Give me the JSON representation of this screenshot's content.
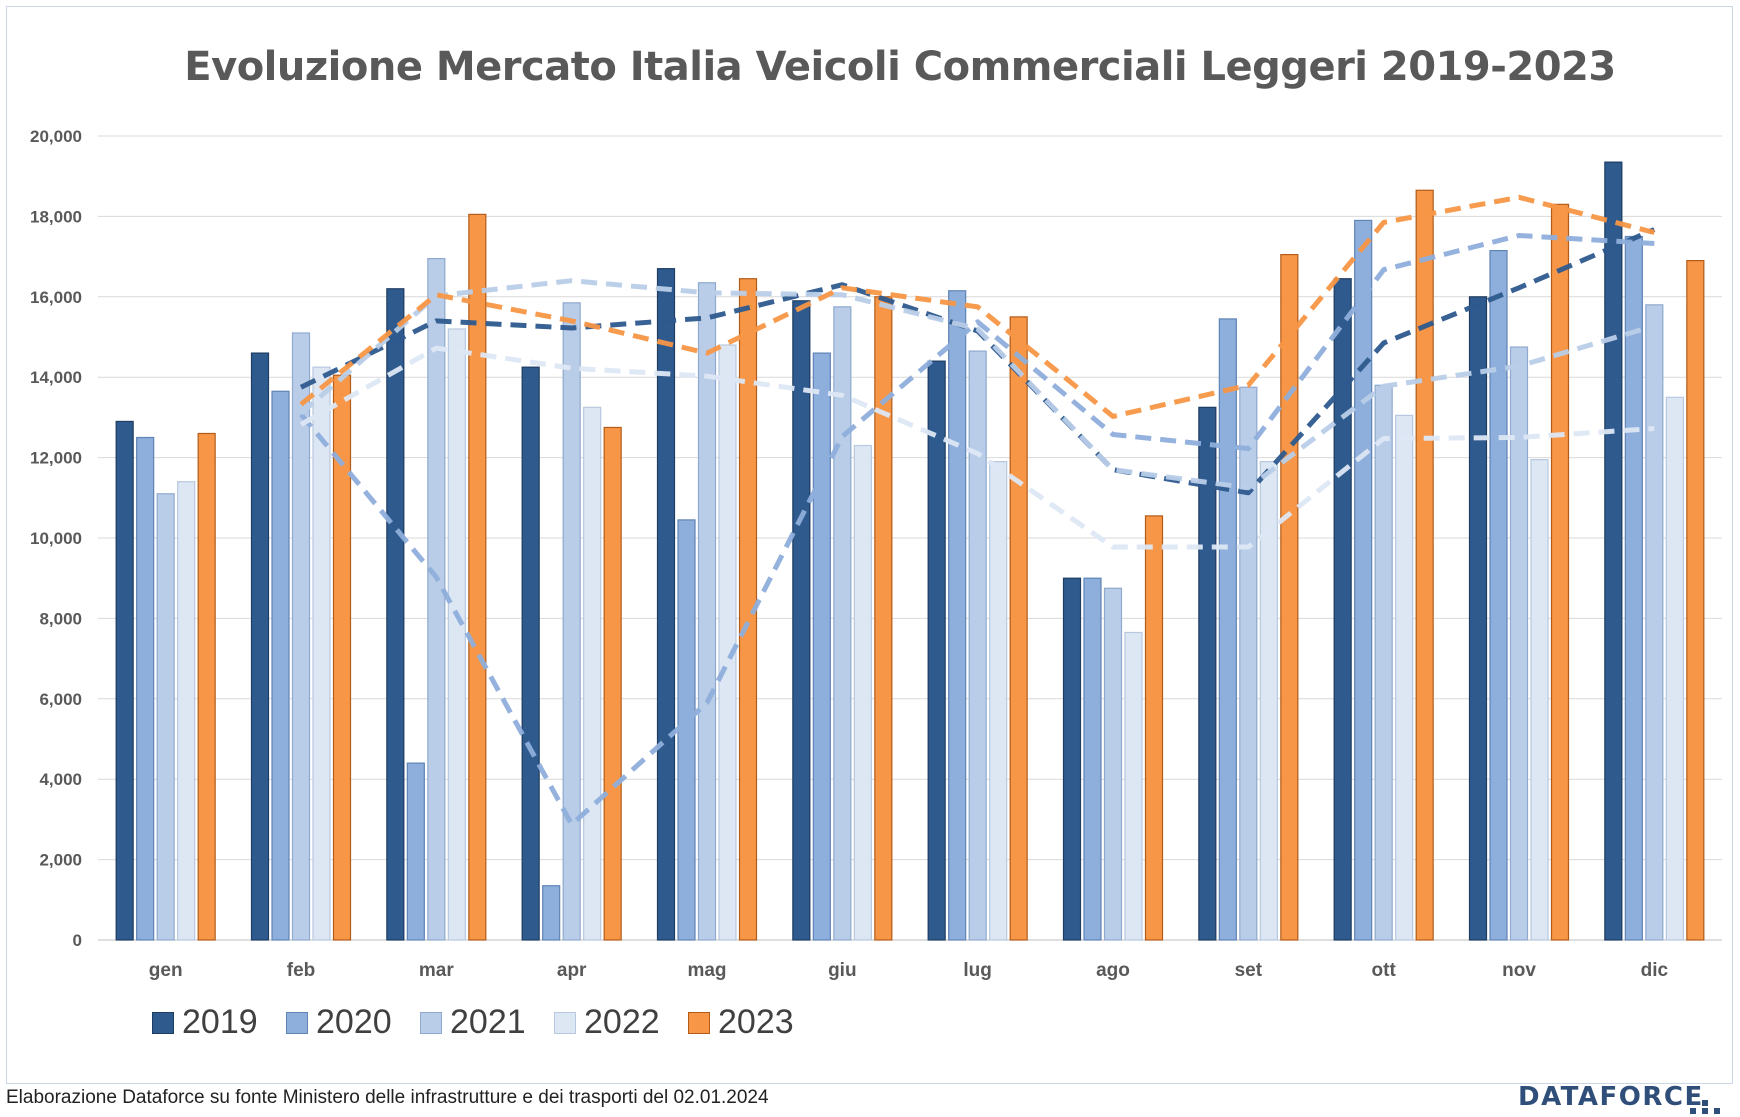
{
  "title": "Evoluzione Mercato Italia Veicoli Commerciali Leggeri 2019-2023",
  "footer_note": "Elaborazione Dataforce su fonte Ministero delle infrastrutture e dei trasporti del 02.01.2024",
  "brand": "DATAFORCE",
  "chart_data": {
    "type": "bar",
    "categories": [
      "gen",
      "feb",
      "mar",
      "apr",
      "mag",
      "giu",
      "lug",
      "ago",
      "set",
      "ott",
      "nov",
      "dic"
    ],
    "ylim": [
      0,
      20000
    ],
    "yticks": [
      0,
      2000,
      4000,
      6000,
      8000,
      10000,
      12000,
      14000,
      16000,
      18000,
      20000
    ],
    "ytick_labels": [
      "0",
      "2,000",
      "4,000",
      "6,000",
      "8,000",
      "10,000",
      "12,000",
      "14,000",
      "16,000",
      "18,000",
      "20,000"
    ],
    "grid": "horizontal",
    "legend_position": "bottom-left",
    "trendlines": "dashed moving average per series",
    "series": [
      {
        "name": "2019",
        "color": "#2e5a8e",
        "values": [
          12900,
          14600,
          16200,
          14250,
          16700,
          15900,
          14400,
          9000,
          13250,
          16450,
          16000,
          19350
        ]
      },
      {
        "name": "2020",
        "color": "#8eaedb",
        "values": [
          12500,
          13650,
          4400,
          1350,
          10450,
          14600,
          16150,
          9000,
          15450,
          17900,
          17150,
          17500
        ]
      },
      {
        "name": "2021",
        "color": "#b9cde8",
        "values": [
          11100,
          15100,
          16950,
          15850,
          16350,
          15750,
          14650,
          8750,
          13750,
          13800,
          14750,
          15800
        ]
      },
      {
        "name": "2022",
        "color": "#dde7f4",
        "values": [
          11400,
          14250,
          15200,
          13250,
          14800,
          12300,
          11900,
          7650,
          11900,
          13050,
          11950,
          13500
        ]
      },
      {
        "name": "2023",
        "color": "#f79646",
        "values": [
          12600,
          14050,
          18050,
          12750,
          16450,
          16000,
          15500,
          10550,
          17050,
          18650,
          18300,
          16900
        ]
      }
    ]
  }
}
